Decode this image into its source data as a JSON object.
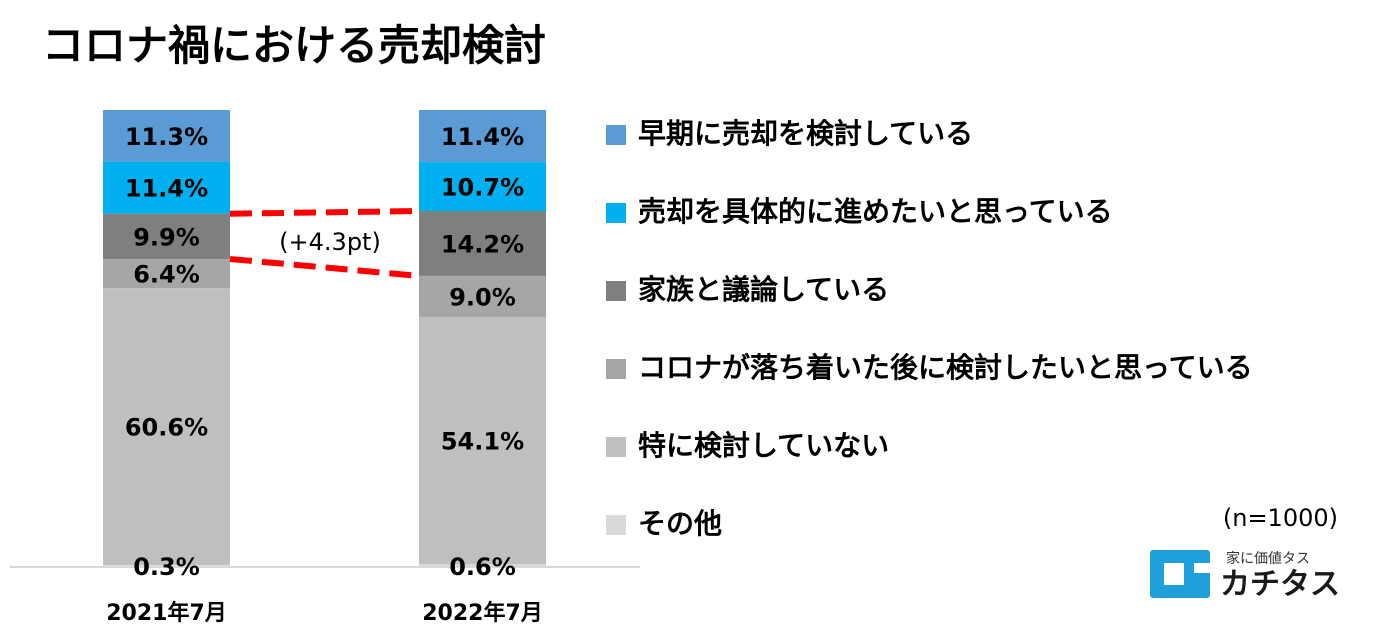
{
  "chart_data": {
    "type": "bar",
    "stacked": true,
    "orientation": "vertical",
    "title": "コロナ禍における売却検討",
    "categories": [
      "2021年7月",
      "2022年7月"
    ],
    "series": [
      {
        "name": "早期に売却を検討している",
        "values": [
          11.3,
          11.4
        ],
        "color": "#5b9bd5"
      },
      {
        "name": "売却を具体的に進めたいと思っている",
        "values": [
          11.4,
          10.7
        ],
        "color": "#00b0f0"
      },
      {
        "name": "家族と議論している",
        "values": [
          9.9,
          14.2
        ],
        "color": "#7f7f7f"
      },
      {
        "name": "コロナが落ち着いた後に検討したいと思っている",
        "values": [
          6.4,
          9.0
        ],
        "color": "#a6a6a6"
      },
      {
        "name": "特に検討していない",
        "values": [
          60.6,
          54.1
        ],
        "color": "#bfbfbf"
      },
      {
        "name": "その他",
        "values": [
          0.3,
          0.6
        ],
        "color": "#d9d9d9"
      }
    ],
    "data_labels": [
      [
        "11.3%",
        "11.4%",
        "9.9%",
        "6.4%",
        "60.6%",
        "0.3%"
      ],
      [
        "11.4%",
        "10.7%",
        "14.2%",
        "9.0%",
        "54.1%",
        "0.6%"
      ]
    ],
    "ylim": [
      0,
      100
    ],
    "grid": false,
    "legend_position": "right",
    "annotation": "(+4.3pt)",
    "annotation_color": "#ff0000",
    "sample_note": "(n=1000)"
  },
  "logo": {
    "tagline": "家に価値タス",
    "name": "カチタス",
    "color": "#1fa0dc"
  }
}
